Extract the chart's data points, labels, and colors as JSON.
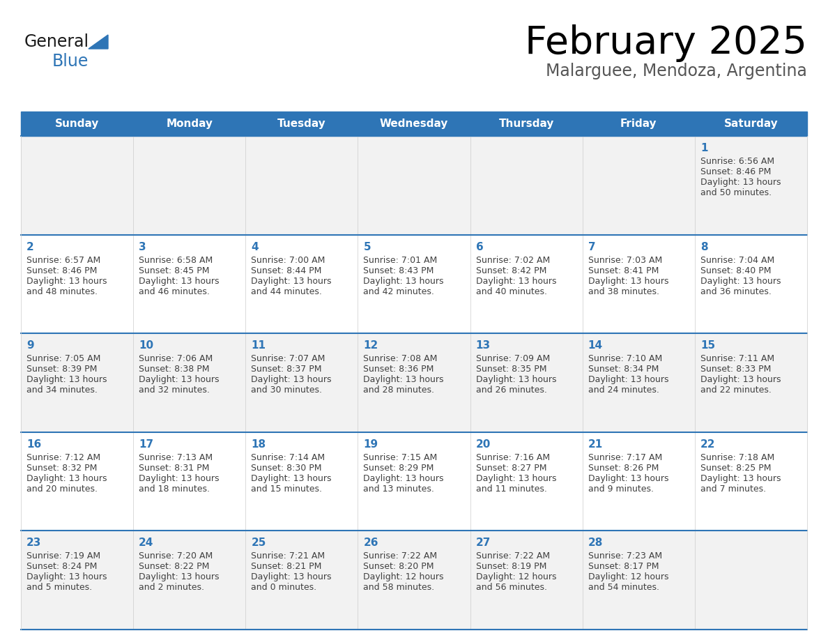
{
  "title": "February 2025",
  "subtitle": "Malarguee, Mendoza, Argentina",
  "header_bg": "#2E75B6",
  "header_text_color": "#FFFFFF",
  "row_bg_odd": "#F2F2F2",
  "row_bg_even": "#FFFFFF",
  "day_number_color": "#2E75B6",
  "info_text_color": "#404040",
  "border_color": "#2E75B6",
  "days_of_week": [
    "Sunday",
    "Monday",
    "Tuesday",
    "Wednesday",
    "Thursday",
    "Friday",
    "Saturday"
  ],
  "logo_general_color": "#1a1a1a",
  "logo_blue_color": "#2E75B6",
  "calendar_data": [
    [
      null,
      null,
      null,
      null,
      null,
      null,
      {
        "day": "1",
        "sunrise": "6:56 AM",
        "sunset": "8:46 PM",
        "daylight_h": "13 hours",
        "daylight_m": "and 50 minutes."
      }
    ],
    [
      {
        "day": "2",
        "sunrise": "6:57 AM",
        "sunset": "8:46 PM",
        "daylight_h": "13 hours",
        "daylight_m": "and 48 minutes."
      },
      {
        "day": "3",
        "sunrise": "6:58 AM",
        "sunset": "8:45 PM",
        "daylight_h": "13 hours",
        "daylight_m": "and 46 minutes."
      },
      {
        "day": "4",
        "sunrise": "7:00 AM",
        "sunset": "8:44 PM",
        "daylight_h": "13 hours",
        "daylight_m": "and 44 minutes."
      },
      {
        "day": "5",
        "sunrise": "7:01 AM",
        "sunset": "8:43 PM",
        "daylight_h": "13 hours",
        "daylight_m": "and 42 minutes."
      },
      {
        "day": "6",
        "sunrise": "7:02 AM",
        "sunset": "8:42 PM",
        "daylight_h": "13 hours",
        "daylight_m": "and 40 minutes."
      },
      {
        "day": "7",
        "sunrise": "7:03 AM",
        "sunset": "8:41 PM",
        "daylight_h": "13 hours",
        "daylight_m": "and 38 minutes."
      },
      {
        "day": "8",
        "sunrise": "7:04 AM",
        "sunset": "8:40 PM",
        "daylight_h": "13 hours",
        "daylight_m": "and 36 minutes."
      }
    ],
    [
      {
        "day": "9",
        "sunrise": "7:05 AM",
        "sunset": "8:39 PM",
        "daylight_h": "13 hours",
        "daylight_m": "and 34 minutes."
      },
      {
        "day": "10",
        "sunrise": "7:06 AM",
        "sunset": "8:38 PM",
        "daylight_h": "13 hours",
        "daylight_m": "and 32 minutes."
      },
      {
        "day": "11",
        "sunrise": "7:07 AM",
        "sunset": "8:37 PM",
        "daylight_h": "13 hours",
        "daylight_m": "and 30 minutes."
      },
      {
        "day": "12",
        "sunrise": "7:08 AM",
        "sunset": "8:36 PM",
        "daylight_h": "13 hours",
        "daylight_m": "and 28 minutes."
      },
      {
        "day": "13",
        "sunrise": "7:09 AM",
        "sunset": "8:35 PM",
        "daylight_h": "13 hours",
        "daylight_m": "and 26 minutes."
      },
      {
        "day": "14",
        "sunrise": "7:10 AM",
        "sunset": "8:34 PM",
        "daylight_h": "13 hours",
        "daylight_m": "and 24 minutes."
      },
      {
        "day": "15",
        "sunrise": "7:11 AM",
        "sunset": "8:33 PM",
        "daylight_h": "13 hours",
        "daylight_m": "and 22 minutes."
      }
    ],
    [
      {
        "day": "16",
        "sunrise": "7:12 AM",
        "sunset": "8:32 PM",
        "daylight_h": "13 hours",
        "daylight_m": "and 20 minutes."
      },
      {
        "day": "17",
        "sunrise": "7:13 AM",
        "sunset": "8:31 PM",
        "daylight_h": "13 hours",
        "daylight_m": "and 18 minutes."
      },
      {
        "day": "18",
        "sunrise": "7:14 AM",
        "sunset": "8:30 PM",
        "daylight_h": "13 hours",
        "daylight_m": "and 15 minutes."
      },
      {
        "day": "19",
        "sunrise": "7:15 AM",
        "sunset": "8:29 PM",
        "daylight_h": "13 hours",
        "daylight_m": "and 13 minutes."
      },
      {
        "day": "20",
        "sunrise": "7:16 AM",
        "sunset": "8:27 PM",
        "daylight_h": "13 hours",
        "daylight_m": "and 11 minutes."
      },
      {
        "day": "21",
        "sunrise": "7:17 AM",
        "sunset": "8:26 PM",
        "daylight_h": "13 hours",
        "daylight_m": "and 9 minutes."
      },
      {
        "day": "22",
        "sunrise": "7:18 AM",
        "sunset": "8:25 PM",
        "daylight_h": "13 hours",
        "daylight_m": "and 7 minutes."
      }
    ],
    [
      {
        "day": "23",
        "sunrise": "7:19 AM",
        "sunset": "8:24 PM",
        "daylight_h": "13 hours",
        "daylight_m": "and 5 minutes."
      },
      {
        "day": "24",
        "sunrise": "7:20 AM",
        "sunset": "8:22 PM",
        "daylight_h": "13 hours",
        "daylight_m": "and 2 minutes."
      },
      {
        "day": "25",
        "sunrise": "7:21 AM",
        "sunset": "8:21 PM",
        "daylight_h": "13 hours",
        "daylight_m": "and 0 minutes."
      },
      {
        "day": "26",
        "sunrise": "7:22 AM",
        "sunset": "8:20 PM",
        "daylight_h": "12 hours",
        "daylight_m": "and 58 minutes."
      },
      {
        "day": "27",
        "sunrise": "7:22 AM",
        "sunset": "8:19 PM",
        "daylight_h": "12 hours",
        "daylight_m": "and 56 minutes."
      },
      {
        "day": "28",
        "sunrise": "7:23 AM",
        "sunset": "8:17 PM",
        "daylight_h": "12 hours",
        "daylight_m": "and 54 minutes."
      },
      null
    ]
  ]
}
